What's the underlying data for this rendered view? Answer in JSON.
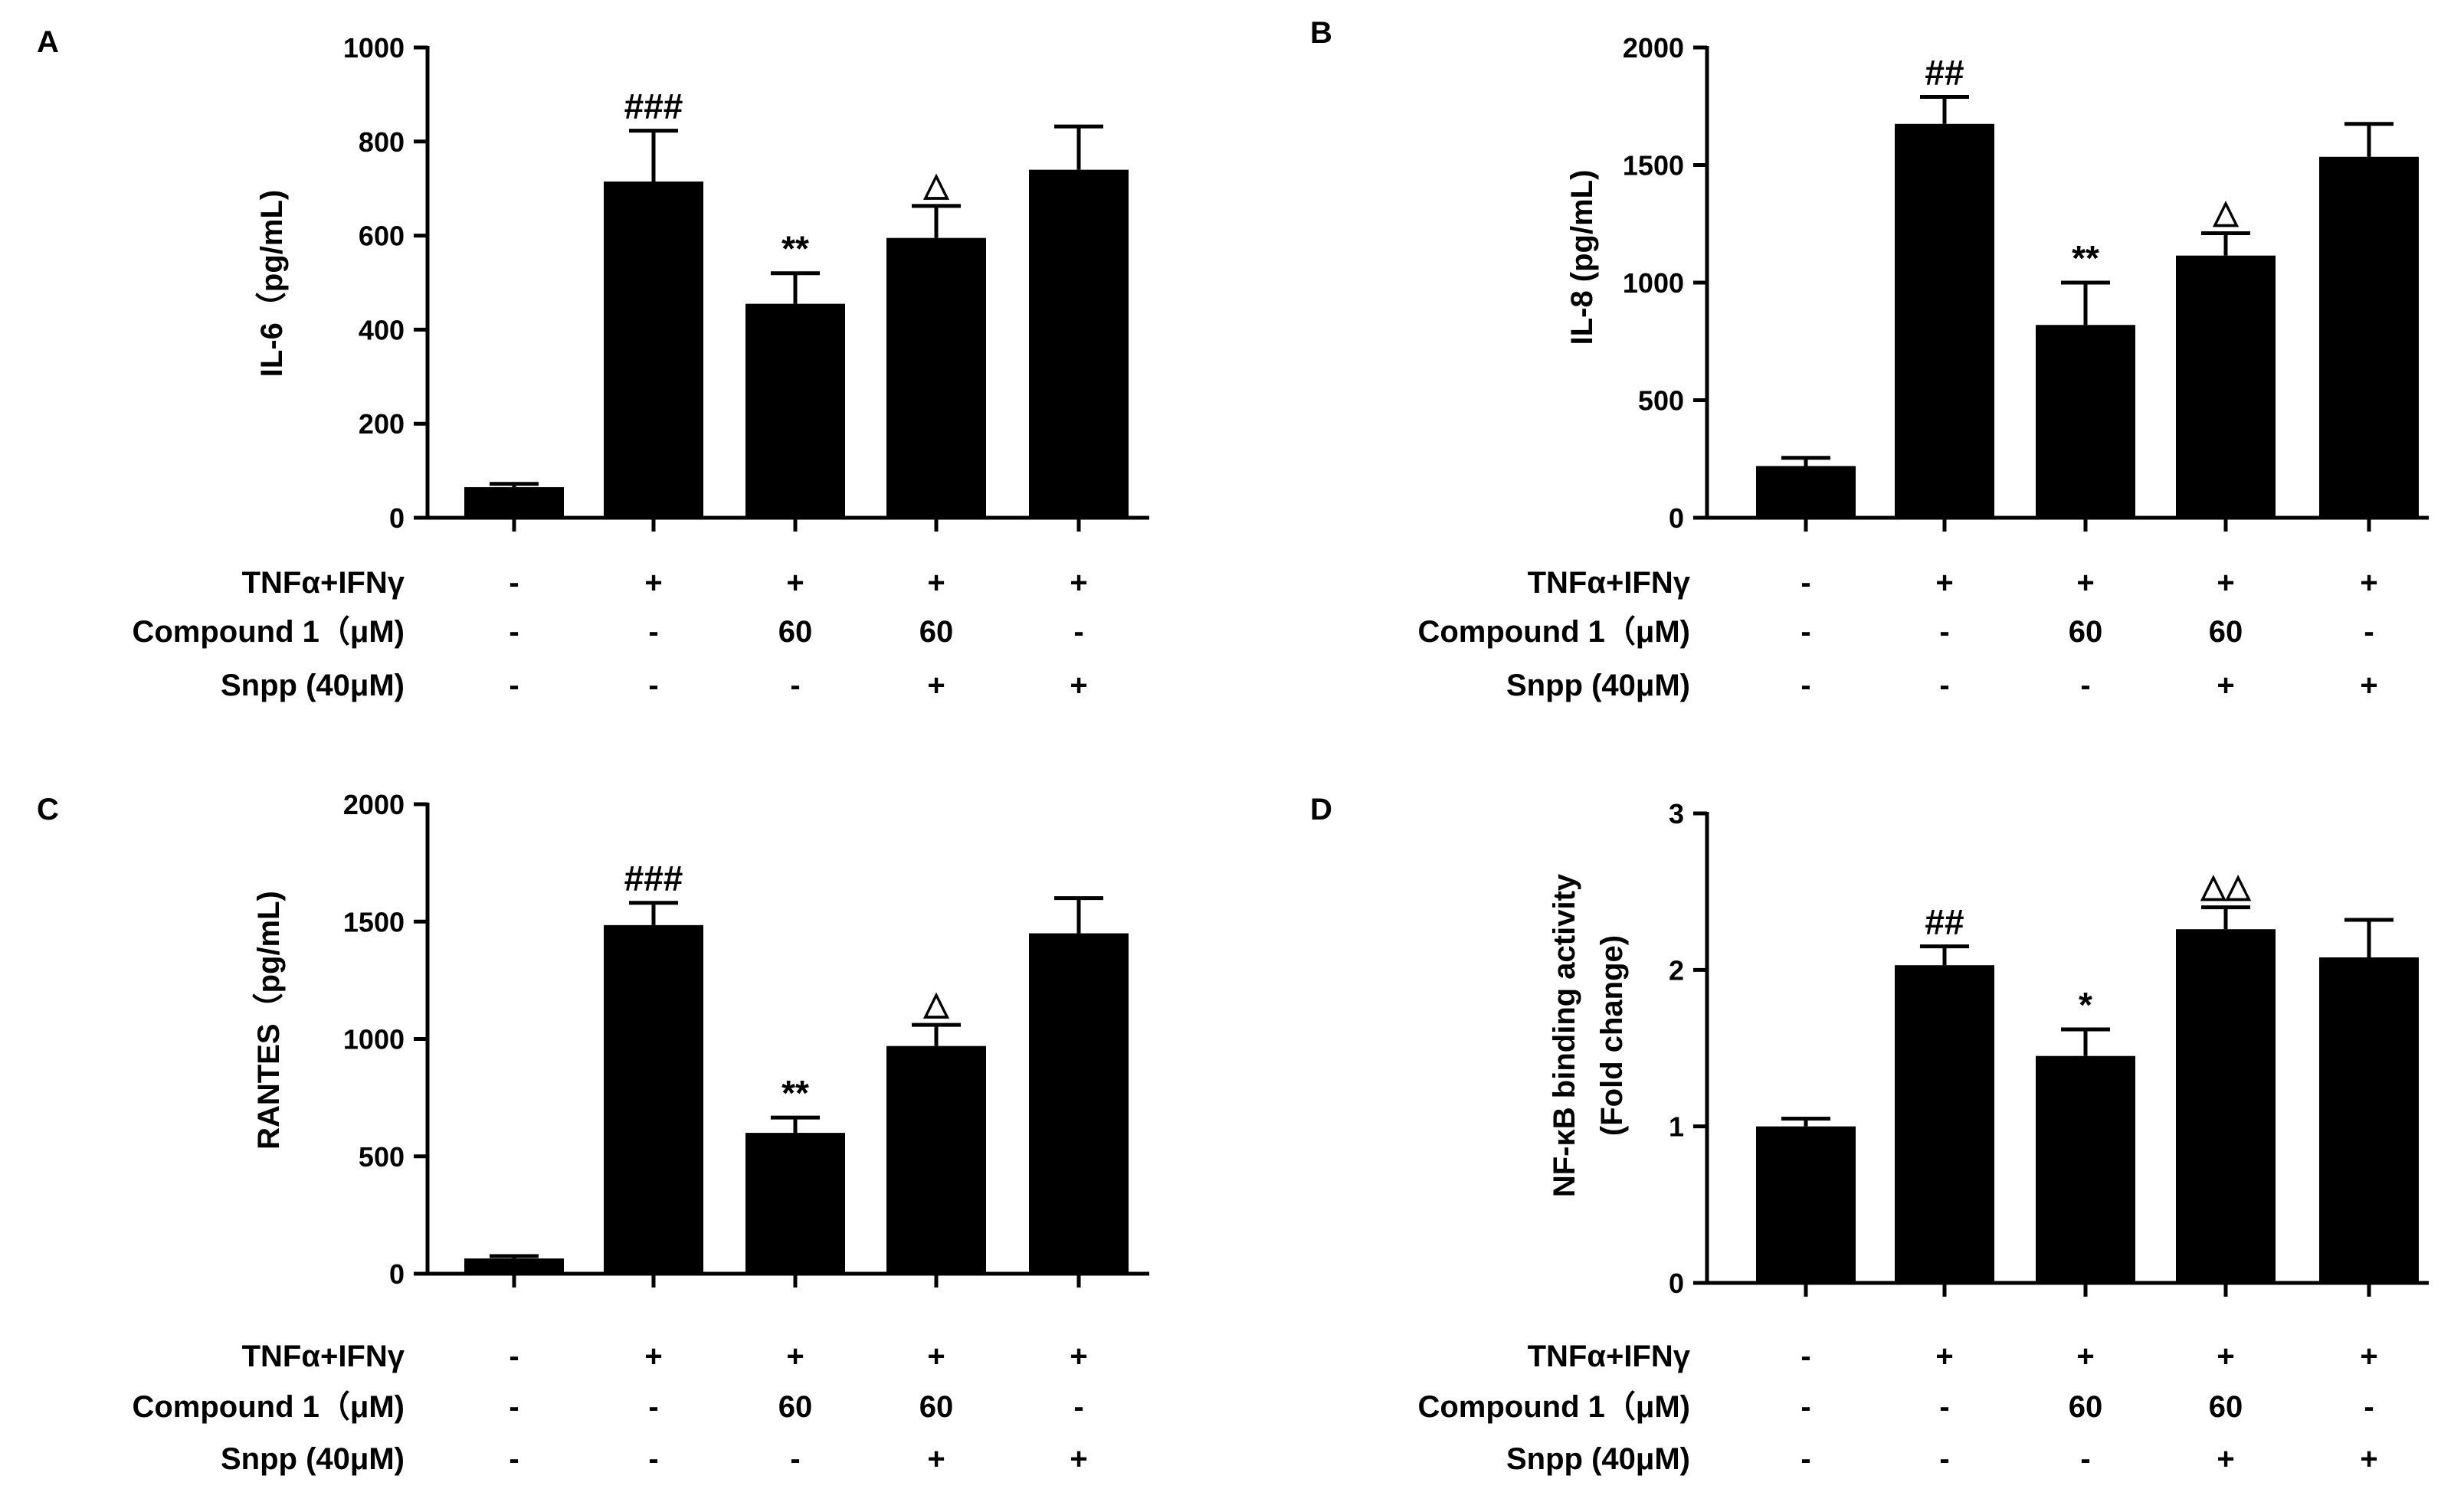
{
  "colors": {
    "bar": "#000000",
    "axis": "#000000",
    "background": "#ffffff"
  },
  "conditions": {
    "row_labels": [
      "TNFα+IFNγ",
      "Compound 1（μM)",
      "Snpp (40μM)"
    ],
    "rows": [
      [
        "-",
        "+",
        "+",
        "+",
        "+"
      ],
      [
        "-",
        "-",
        "60",
        "60",
        "-"
      ],
      [
        "-",
        "-",
        "-",
        "+",
        "+"
      ]
    ]
  },
  "chart_data": [
    {
      "panel": "A",
      "type": "bar",
      "ylabel": "IL-6（pg/mL)",
      "ylabel2": "",
      "ylim": [
        0,
        1000
      ],
      "yticks": [
        0,
        200,
        400,
        600,
        800,
        1000
      ],
      "values": [
        65,
        715,
        455,
        595,
        740
      ],
      "errors": [
        7,
        108,
        65,
        68,
        92
      ],
      "annotations": [
        "",
        "###",
        "**",
        "△",
        ""
      ]
    },
    {
      "panel": "B",
      "type": "bar",
      "ylabel": "IL-8 (pg/mL)",
      "ylabel2": "",
      "ylim": [
        0,
        2000
      ],
      "yticks": [
        0,
        500,
        1000,
        1500,
        2000
      ],
      "values": [
        220,
        1675,
        820,
        1115,
        1535
      ],
      "errors": [
        35,
        115,
        180,
        95,
        140
      ],
      "annotations": [
        "",
        "##",
        "**",
        "△",
        ""
      ]
    },
    {
      "panel": "C",
      "type": "bar",
      "ylabel": "RANTES（pg/mL)",
      "ylabel2": "",
      "ylim": [
        0,
        2000
      ],
      "yticks": [
        0,
        500,
        1000,
        1500,
        2000
      ],
      "values": [
        65,
        1485,
        600,
        970,
        1450
      ],
      "errors": [
        10,
        95,
        65,
        90,
        150
      ],
      "annotations": [
        "",
        "###",
        "**",
        "△",
        ""
      ]
    },
    {
      "panel": "D",
      "type": "bar",
      "ylabel": "NF-κB binding activity",
      "ylabel2": "(Fold change)",
      "ylim": [
        0,
        3
      ],
      "yticks": [
        0,
        1,
        2,
        3
      ],
      "values": [
        1.0,
        2.03,
        1.45,
        2.26,
        2.08
      ],
      "errors": [
        0.05,
        0.12,
        0.17,
        0.14,
        0.24
      ],
      "annotations": [
        "",
        "##",
        "*",
        "△△",
        ""
      ]
    }
  ]
}
